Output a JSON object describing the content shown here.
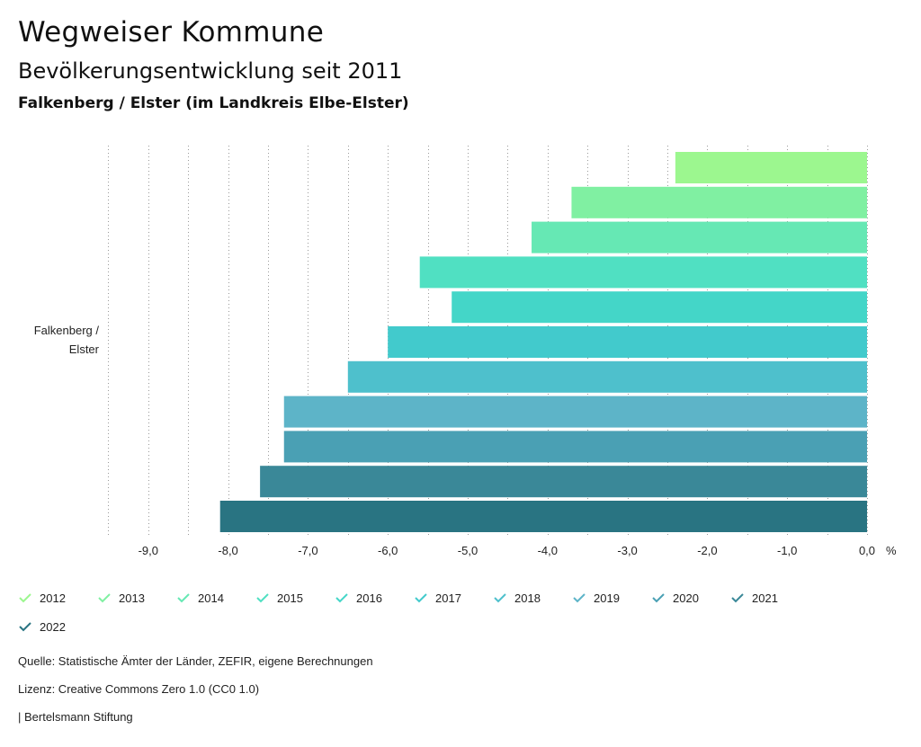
{
  "header": {
    "title": "Wegweiser Kommune",
    "subtitle": "Bevölkerungsentwicklung seit 2011",
    "region": "Falkenberg / Elster (im Landkreis Elbe-Elster)"
  },
  "chart_data": {
    "type": "bar",
    "orientation": "horizontal",
    "category": "Falkenberg / Elster",
    "category_lines": [
      "Falkenberg /",
      "Elster"
    ],
    "unit": "%",
    "xlim": [
      -9.5,
      0
    ],
    "xticks": [
      -9.0,
      -8.0,
      -7.0,
      -6.0,
      -5.0,
      -4.0,
      -3.0,
      -2.0,
      -1.0,
      0.0
    ],
    "xtick_labels": [
      "-9,0",
      "-8,0",
      "-7,0",
      "-6,0",
      "-5,0",
      "-4,0",
      "-3,0",
      "-2,0",
      "-1,0",
      "0,0"
    ],
    "grid": true,
    "series": [
      {
        "name": "2012",
        "value": -2.4,
        "color": "#9cf78f"
      },
      {
        "name": "2013",
        "value": -3.7,
        "color": "#80f0a2"
      },
      {
        "name": "2014",
        "value": -4.2,
        "color": "#66e8b4"
      },
      {
        "name": "2015",
        "value": -5.6,
        "color": "#50e0c2"
      },
      {
        "name": "2016",
        "value": -5.2,
        "color": "#44d6c8"
      },
      {
        "name": "2017",
        "value": -6.0,
        "color": "#42cacc"
      },
      {
        "name": "2018",
        "value": -6.5,
        "color": "#4ec0cc"
      },
      {
        "name": "2019",
        "value": -7.3,
        "color": "#5db4c8"
      },
      {
        "name": "2020",
        "value": -7.3,
        "color": "#4aa0b4"
      },
      {
        "name": "2021",
        "value": -7.6,
        "color": "#3a8898"
      },
      {
        "name": "2022",
        "value": -8.1,
        "color": "#297482"
      }
    ],
    "legend_position": "bottom"
  },
  "footer": {
    "source": "Quelle: Statistische Ämter der Länder, ZEFIR, eigene Berechnungen",
    "license": "Lizenz: Creative Commons Zero 1.0 (CC0 1.0)",
    "publisher": "| Bertelsmann Stiftung"
  }
}
